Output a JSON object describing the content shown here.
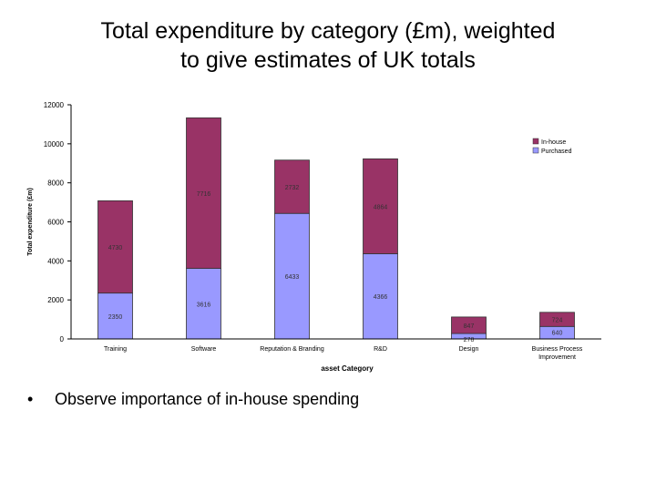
{
  "slide": {
    "title_line1": "Total expenditure by category (£m), weighted",
    "title_line2": "to give estimates of UK totals",
    "bullet_symbol": "•",
    "bullet_text": "Observe importance of in-house spending"
  },
  "chart_data": {
    "type": "bar",
    "stacked": true,
    "categories": [
      "Training",
      "Software",
      "Reputation & Branding",
      "R&D",
      "Design",
      "Business Process Improvement"
    ],
    "category_label_lines": [
      [
        "Training"
      ],
      [
        "Software"
      ],
      [
        "Reputation & Branding"
      ],
      [
        "R&D"
      ],
      [
        "Design"
      ],
      [
        "Business Process",
        "Improvement"
      ]
    ],
    "series": [
      {
        "name": "Purchased",
        "color": "#9999ff",
        "values": [
          2350,
          3616,
          6433,
          4366,
          278,
          640
        ]
      },
      {
        "name": "In-house",
        "color": "#993366",
        "values": [
          4730,
          7716,
          2732,
          4864,
          847,
          724
        ]
      }
    ],
    "data_labels": [
      [
        "2350",
        "3616",
        "6433",
        "4366",
        "278",
        "640"
      ],
      [
        "4730",
        "7716",
        "2732",
        "4864",
        "847",
        "724"
      ]
    ],
    "xlabel": "asset Category",
    "ylabel": "Total expenditure (£m)",
    "ylim": [
      0,
      12000
    ],
    "yticks": [
      0,
      2000,
      4000,
      6000,
      8000,
      10000,
      12000
    ],
    "legend_order": [
      "In-house",
      "Purchased"
    ],
    "legend_position": "right",
    "grid": false
  }
}
